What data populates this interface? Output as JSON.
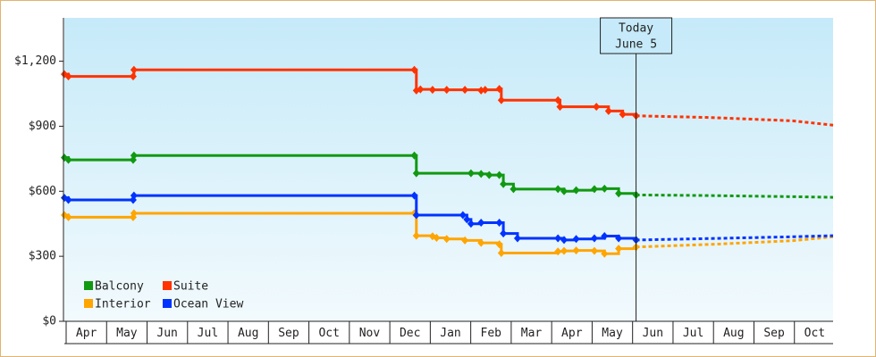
{
  "chart_data": {
    "type": "step-line",
    "xlim": [
      0,
      19
    ],
    "xticks": [
      {
        "value": 0.5,
        "label": "Apr"
      },
      {
        "value": 1.5,
        "label": "May"
      },
      {
        "value": 2.5,
        "label": "Jun"
      },
      {
        "value": 3.5,
        "label": "Jul"
      },
      {
        "value": 4.5,
        "label": "Aug"
      },
      {
        "value": 5.5,
        "label": "Sep"
      },
      {
        "value": 6.5,
        "label": "Oct"
      },
      {
        "value": 7.5,
        "label": "Nov"
      },
      {
        "value": 8.5,
        "label": "Dec"
      },
      {
        "value": 9.5,
        "label": "Jan"
      },
      {
        "value": 10.5,
        "label": "Feb"
      },
      {
        "value": 11.5,
        "label": "Mar"
      },
      {
        "value": 12.5,
        "label": "Apr"
      },
      {
        "value": 13.5,
        "label": "May"
      },
      {
        "value": 14.5,
        "label": "Jun"
      },
      {
        "value": 15.5,
        "label": "Jul"
      },
      {
        "value": 16.5,
        "label": "Aug"
      },
      {
        "value": 17.5,
        "label": "Sep"
      },
      {
        "value": 18.5,
        "label": "Oct"
      }
    ],
    "ylim": [
      0,
      1400
    ],
    "yticks": [
      {
        "value": 0,
        "label": "$0"
      },
      {
        "value": 300,
        "label": "$300"
      },
      {
        "value": 600,
        "label": "$600"
      },
      {
        "value": 900,
        "label": "$900"
      },
      {
        "value": 1200,
        "label": "$1,200"
      }
    ],
    "annotation": {
      "x": 14.13,
      "text": [
        "Today",
        "June 5"
      ]
    },
    "legend": "bottom-left",
    "series": [
      {
        "name": "Balcony",
        "color": "#119911",
        "x": [
          0,
          0.1,
          1.7,
          1.72,
          8.65,
          8.7,
          10.05,
          10.3,
          10.5,
          10.75,
          10.85,
          11.1,
          12.2,
          12.35,
          12.65,
          13.1,
          13.35,
          13.7,
          14.13
        ],
        "values": [
          755,
          745,
          745,
          765,
          765,
          683,
          683,
          680,
          675,
          675,
          633,
          610,
          610,
          600,
          605,
          610,
          612,
          590,
          583
        ],
        "forecast_x": [
          14.13,
          16,
          18,
          19
        ],
        "forecast_values": [
          583,
          580,
          575,
          572
        ]
      },
      {
        "name": "Suite",
        "color": "#ff3300",
        "x": [
          0,
          0.1,
          1.7,
          1.72,
          8.65,
          8.7,
          8.8,
          9.1,
          9.45,
          9.9,
          10.3,
          10.4,
          10.75,
          10.8,
          12.2,
          12.25,
          13.15,
          13.45,
          13.8,
          14.13
        ],
        "values": [
          1140,
          1130,
          1130,
          1160,
          1160,
          1065,
          1070,
          1068,
          1068,
          1068,
          1065,
          1068,
          1072,
          1020,
          1020,
          990,
          990,
          970,
          955,
          948
        ],
        "forecast_x": [
          14.13,
          16,
          18,
          19
        ],
        "forecast_values": [
          948,
          940,
          925,
          905
        ]
      },
      {
        "name": "Interior",
        "color": "#ffa500",
        "x": [
          0,
          0.1,
          1.7,
          1.72,
          8.65,
          8.7,
          9.1,
          9.2,
          9.45,
          9.9,
          10.3,
          10.75,
          10.8,
          12.2,
          12.35,
          12.65,
          13.1,
          13.35,
          13.7,
          14.13
        ],
        "values": [
          490,
          480,
          480,
          498,
          498,
          395,
          392,
          385,
          380,
          373,
          362,
          355,
          315,
          322,
          325,
          327,
          325,
          312,
          335,
          343
        ],
        "forecast_x": [
          14.13,
          16,
          18,
          19
        ],
        "forecast_values": [
          343,
          355,
          372,
          390
        ]
      },
      {
        "name": "Ocean View",
        "color": "#0033ff",
        "x": [
          0,
          0.1,
          1.7,
          1.72,
          8.65,
          8.7,
          9.85,
          9.95,
          10.05,
          10.3,
          10.75,
          10.85,
          11.2,
          12.2,
          12.35,
          12.65,
          13.1,
          13.35,
          13.7,
          14.13
        ],
        "values": [
          570,
          560,
          560,
          580,
          580,
          490,
          490,
          470,
          450,
          455,
          455,
          405,
          383,
          383,
          375,
          380,
          383,
          393,
          383,
          375
        ],
        "forecast_x": [
          14.13,
          16,
          18,
          19
        ],
        "forecast_values": [
          375,
          382,
          390,
          395
        ]
      }
    ]
  }
}
